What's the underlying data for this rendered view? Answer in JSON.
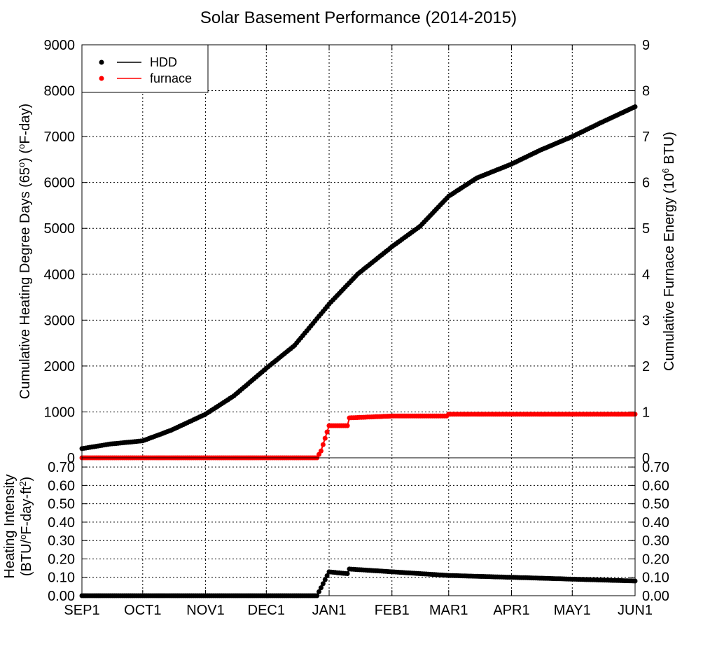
{
  "chart_data": [
    {
      "type": "line",
      "title": "Solar Basement Performance (2014-2015)",
      "ylabel_left": "Cumulative Heating Degree Days (65°) (°F-day)",
      "ylabel_left_parts": [
        "Cumulative Heating Degree Days (65",
        "o",
        ") (",
        "o",
        "F-day)"
      ],
      "ylabel_right": "Cumulative Furnace Energy (10^6 BTU)",
      "ylabel_right_parts": [
        "Cumulative Furnace Energy (10",
        "6",
        " BTU)"
      ],
      "ylim_left": [
        0,
        9000
      ],
      "ylim_right": [
        0,
        9
      ],
      "yticks_left": [
        "0",
        "1000",
        "2000",
        "3000",
        "4000",
        "5000",
        "6000",
        "7000",
        "8000",
        "9000"
      ],
      "yticks_right": [
        "0",
        "1",
        "2",
        "3",
        "4",
        "5",
        "6",
        "7",
        "8",
        "9"
      ],
      "grid": true,
      "legend_position": "top-left",
      "legend": [
        {
          "name": "HDD",
          "color": "#000000"
        },
        {
          "name": "furnace",
          "color": "#ff0000"
        }
      ],
      "series": [
        {
          "name": "HDD",
          "axis": "left",
          "color": "#000000",
          "x": [
            "2014-09-01",
            "2014-09-15",
            "2014-10-01",
            "2014-10-15",
            "2014-11-01",
            "2014-11-15",
            "2014-12-01",
            "2014-12-15",
            "2015-01-01",
            "2015-01-15",
            "2015-02-01",
            "2015-02-15",
            "2015-03-01",
            "2015-03-15",
            "2015-04-01",
            "2015-04-15",
            "2015-05-01",
            "2015-05-15",
            "2015-06-01"
          ],
          "values": [
            200,
            300,
            370,
            600,
            950,
            1350,
            1950,
            2450,
            3350,
            4000,
            4600,
            5050,
            5700,
            6100,
            6400,
            6700,
            7000,
            7300,
            7650
          ]
        },
        {
          "name": "furnace",
          "axis": "right",
          "color": "#ff0000",
          "x": [
            "2014-09-01",
            "2014-12-26",
            "2014-12-28",
            "2015-01-01",
            "2015-01-10",
            "2015-01-11",
            "2015-02-01",
            "2015-02-28",
            "2015-03-01",
            "2015-06-01"
          ],
          "values": [
            0,
            0,
            0.15,
            0.7,
            0.7,
            0.87,
            0.91,
            0.91,
            0.95,
            0.95
          ]
        }
      ]
    },
    {
      "type": "line",
      "ylabel": "Heating Intensity (BTU/°F-day-ft²)",
      "ylabel_line1": "Heating Intensity",
      "ylabel_line2_parts": [
        "(BTU/",
        "o",
        "F-day-ft",
        "2",
        ")"
      ],
      "ylim": [
        0,
        0.75
      ],
      "yticks": [
        "0.00",
        "0.10",
        "0.20",
        "0.30",
        "0.40",
        "0.50",
        "0.60",
        "0.70"
      ],
      "xtick_labels": [
        "SEP1",
        "OCT1",
        "NOV1",
        "DEC1",
        "JAN1",
        "FEB1",
        "MAR1",
        "APR1",
        "MAY1",
        "JUN1"
      ],
      "grid": true,
      "series": [
        {
          "color": "#000000",
          "x": [
            "2014-09-01",
            "2014-12-26",
            "2015-01-01",
            "2015-01-05",
            "2015-01-10",
            "2015-01-11",
            "2015-02-01",
            "2015-03-01",
            "2015-04-01",
            "2015-05-01",
            "2015-06-01"
          ],
          "values": [
            0,
            0,
            0.13,
            0.125,
            0.12,
            0.145,
            0.13,
            0.11,
            0.1,
            0.09,
            0.08
          ]
        }
      ]
    }
  ]
}
